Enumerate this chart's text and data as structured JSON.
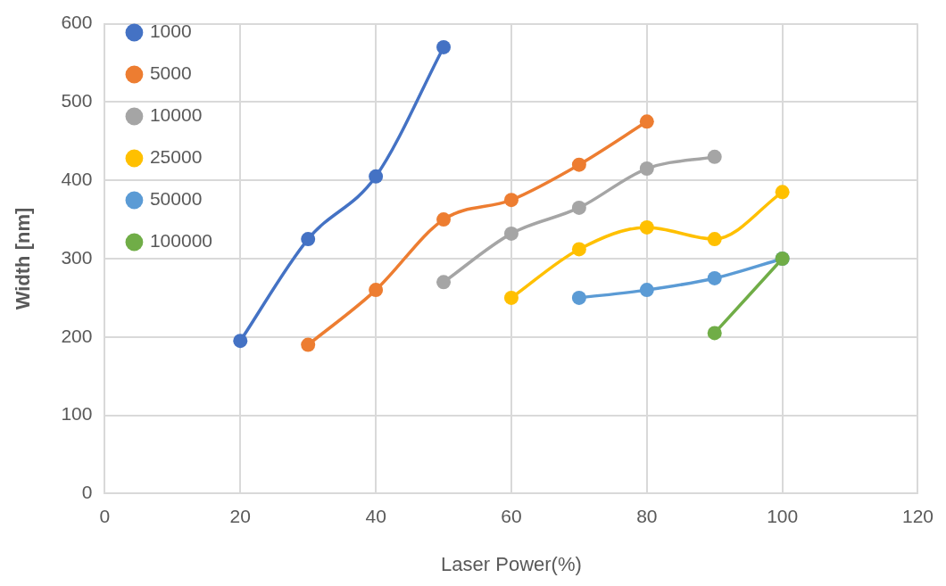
{
  "chart_data": {
    "type": "line",
    "xlabel": "Laser Power(%)",
    "ylabel": "Width [nm]",
    "xlim": [
      0,
      120
    ],
    "xticks": [
      0,
      20,
      40,
      60,
      80,
      100,
      120
    ],
    "ylim": [
      0,
      600
    ],
    "yticks": [
      0,
      100,
      200,
      300,
      400,
      500,
      600
    ],
    "grid": true,
    "legend": "top left",
    "marker": "circle",
    "series": [
      {
        "name": "1000",
        "color": "#4472c4",
        "x": [
          20,
          30,
          40,
          50
        ],
        "values": [
          195,
          325,
          405,
          570
        ]
      },
      {
        "name": "5000",
        "color": "#ed7d31",
        "x": [
          30,
          40,
          50,
          60,
          70,
          80
        ],
        "values": [
          190,
          260,
          350,
          375,
          420,
          475
        ]
      },
      {
        "name": "10000",
        "color": "#a5a5a5",
        "x": [
          50,
          60,
          70,
          80,
          90
        ],
        "values": [
          270,
          332,
          365,
          415,
          430
        ]
      },
      {
        "name": "25000",
        "color": "#ffc000",
        "x": [
          60,
          70,
          80,
          90,
          100
        ],
        "values": [
          250,
          312,
          340,
          325,
          385
        ]
      },
      {
        "name": "50000",
        "color": "#5b9bd5",
        "x": [
          70,
          80,
          90,
          100
        ],
        "values": [
          250,
          260,
          275,
          300
        ]
      },
      {
        "name": "100000",
        "color": "#70ad47",
        "x": [
          90,
          100
        ],
        "values": [
          205,
          300
        ]
      }
    ]
  }
}
